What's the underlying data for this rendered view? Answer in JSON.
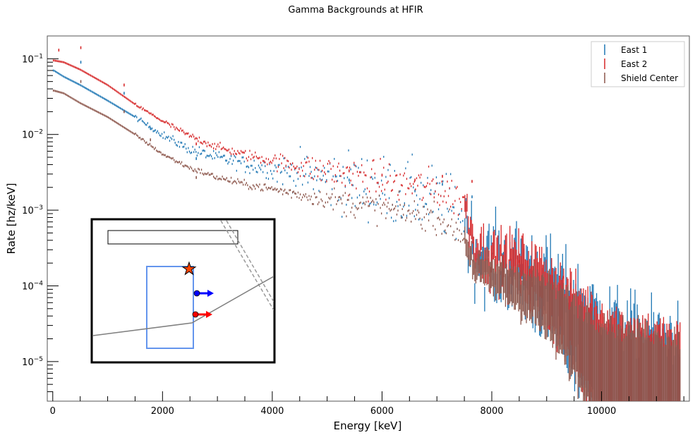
{
  "chart_data": {
    "type": "scatter",
    "title": "Gamma Backgrounds at HFIR",
    "xlabel": "Energy [keV]",
    "ylabel": "Rate [hz/keV]",
    "xlim": [
      -100,
      11600
    ],
    "ylim": [
      3e-06,
      0.2
    ],
    "yscale": "log",
    "x_ticks": [
      0,
      2000,
      4000,
      6000,
      8000,
      10000
    ],
    "x_tick_labels": [
      "0",
      "2000",
      "4000",
      "6000",
      "8000",
      "10000"
    ],
    "y_ticks": [
      1e-05,
      0.0001,
      0.001,
      0.01,
      0.1
    ],
    "y_tick_labels": [
      {
        "base": "10",
        "exp": "−5"
      },
      {
        "base": "10",
        "exp": "−4"
      },
      {
        "base": "10",
        "exp": "−3"
      },
      {
        "base": "10",
        "exp": "−2"
      },
      {
        "base": "10",
        "exp": "−1"
      }
    ],
    "legend_position": "top-right",
    "grid": false,
    "bin_width_kev": 20,
    "series": [
      {
        "name": "East 1",
        "color": "#1f77b4",
        "curve": [
          [
            20,
            0.07
          ],
          [
            200,
            0.058
          ],
          [
            500,
            0.045
          ],
          [
            1000,
            0.028
          ],
          [
            1500,
            0.017
          ],
          [
            2000,
            0.0098
          ],
          [
            2500,
            0.0063
          ],
          [
            3000,
            0.0049
          ],
          [
            3500,
            0.0041
          ],
          [
            4000,
            0.0035
          ],
          [
            4500,
            0.003
          ],
          [
            5000,
            0.0026
          ],
          [
            5500,
            0.0022
          ],
          [
            6000,
            0.0019
          ],
          [
            6500,
            0.0016
          ],
          [
            7000,
            0.00135
          ],
          [
            7500,
            0.0008
          ],
          [
            7700,
            0.00028
          ],
          [
            8000,
            0.00022
          ],
          [
            8500,
            0.00019
          ],
          [
            9000,
            0.00011
          ],
          [
            9500,
            5e-05
          ],
          [
            10000,
            2.5e-05
          ],
          [
            10500,
            1.5e-05
          ],
          [
            11000,
            1.2e-05
          ],
          [
            11400,
            1e-05
          ]
        ],
        "scatter": [
          0,
          0,
          0,
          0.08,
          0.15,
          0.2,
          0.25,
          0.35,
          0.55,
          0.8,
          1.1,
          1.2,
          1.2,
          1.2,
          1.2,
          1.2,
          1.2,
          1.2,
          1.2,
          1.2,
          1.2,
          1.2,
          1.2,
          1.2
        ],
        "peaks": [
          [
            511,
            0.09
          ],
          [
            1300,
            0.035
          ],
          [
            1780,
            0.012
          ],
          [
            2615,
            0.0048
          ],
          [
            5400,
            0.0025
          ],
          [
            6600,
            0.0018
          ],
          [
            7100,
            0.0022
          ],
          [
            7640,
            0.0015
          ]
        ]
      },
      {
        "name": "East 2",
        "color": "#d62728",
        "curve": [
          [
            20,
            0.095
          ],
          [
            200,
            0.09
          ],
          [
            500,
            0.072
          ],
          [
            1000,
            0.045
          ],
          [
            1500,
            0.025
          ],
          [
            2000,
            0.015
          ],
          [
            2500,
            0.0095
          ],
          [
            3000,
            0.0068
          ],
          [
            3500,
            0.0054
          ],
          [
            4000,
            0.0045
          ],
          [
            4500,
            0.0038
          ],
          [
            5000,
            0.0032
          ],
          [
            5500,
            0.0028
          ],
          [
            6000,
            0.0024
          ],
          [
            6500,
            0.0021
          ],
          [
            7000,
            0.0019
          ],
          [
            7500,
            0.0013
          ],
          [
            7700,
            0.00035
          ],
          [
            8000,
            0.00025
          ],
          [
            8500,
            0.00021
          ],
          [
            9000,
            0.00012
          ],
          [
            9500,
            5e-05
          ],
          [
            10000,
            2.5e-05
          ],
          [
            10500,
            1.5e-05
          ],
          [
            11000,
            1.2e-05
          ],
          [
            11400,
            1e-05
          ]
        ],
        "scatter": [
          0,
          0,
          0,
          0.05,
          0.1,
          0.12,
          0.15,
          0.2,
          0.3,
          0.5,
          0.7,
          0.7,
          0.7,
          0.7,
          0.7,
          0.7,
          0.7,
          0.7,
          0.7,
          0.7,
          0.7,
          0.7,
          0.7,
          0.7
        ],
        "peaks": [
          [
            110,
            0.13
          ],
          [
            511,
            0.14
          ],
          [
            1300,
            0.045
          ],
          [
            2615,
            0.0075
          ],
          [
            5400,
            0.0033
          ],
          [
            6000,
            0.0029
          ],
          [
            6600,
            0.0025
          ],
          [
            7100,
            0.0028
          ],
          [
            7640,
            0.0024
          ],
          [
            8500,
            0.00021
          ],
          [
            9300,
            0.00013
          ]
        ]
      },
      {
        "name": "Shield Center",
        "color": "#8c564b",
        "curve": [
          [
            20,
            0.038
          ],
          [
            200,
            0.035
          ],
          [
            500,
            0.026
          ],
          [
            1000,
            0.017
          ],
          [
            1500,
            0.01
          ],
          [
            2000,
            0.0055
          ],
          [
            2500,
            0.0036
          ],
          [
            3000,
            0.0027
          ],
          [
            3500,
            0.0022
          ],
          [
            4000,
            0.0019
          ],
          [
            4500,
            0.0016
          ],
          [
            5000,
            0.0014
          ],
          [
            5500,
            0.0012
          ],
          [
            6000,
            0.00105
          ],
          [
            6500,
            0.0009
          ],
          [
            7000,
            0.0008
          ],
          [
            7500,
            0.00045
          ],
          [
            7700,
            0.00018
          ],
          [
            8000,
            0.00014
          ],
          [
            8500,
            0.00011
          ],
          [
            9000,
            7e-05
          ],
          [
            9500,
            3.5e-05
          ],
          [
            10000,
            1.8e-05
          ],
          [
            10500,
            1.3e-05
          ],
          [
            11000,
            1.1e-05
          ],
          [
            11400,
            9.5e-06
          ]
        ],
        "scatter": [
          0,
          0,
          0,
          0.05,
          0.08,
          0.1,
          0.12,
          0.15,
          0.2,
          0.3,
          0.45,
          0.5,
          0.5,
          0.5,
          0.5,
          0.5,
          0.5,
          0.5,
          0.5,
          0.5,
          0.5,
          0.5,
          0.5,
          0.5
        ],
        "peaks": [
          [
            511,
            0.05
          ],
          [
            1300,
            0.02
          ],
          [
            1780,
            0.0085
          ],
          [
            2615,
            0.0027
          ]
        ]
      }
    ]
  },
  "legend": {
    "items": [
      {
        "label": "East 1",
        "color": "#1f77b4"
      },
      {
        "label": "East 2",
        "color": "#d62728"
      },
      {
        "label": "Shield Center",
        "color": "#8c564b"
      }
    ]
  },
  "inset": {
    "box_color": "#6495ed",
    "star_color": "#ff4500",
    "arrow_upper_color": "#0000ff",
    "arrow_lower_color": "#ff0000",
    "line_color": "#808080"
  }
}
